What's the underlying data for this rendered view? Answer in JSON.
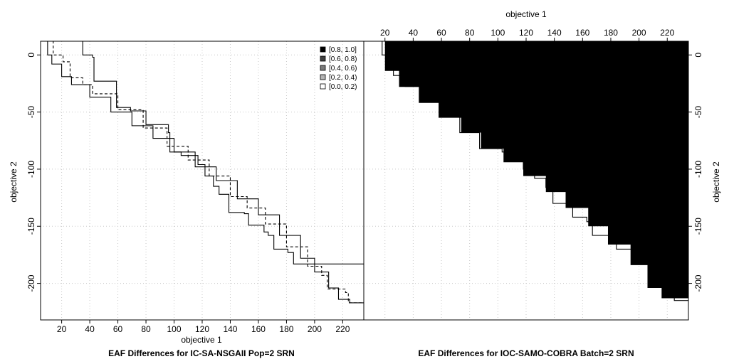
{
  "chart_data": {
    "type": "line",
    "xlabel": "objective 1",
    "ylabel": "objective 2",
    "xlim": [
      5,
      235
    ],
    "ylim": [
      -232,
      12
    ],
    "x_ticks": [
      20,
      40,
      60,
      80,
      100,
      120,
      140,
      160,
      180,
      200,
      220
    ],
    "y_ticks": [
      0,
      -50,
      -100,
      -150,
      -200
    ],
    "grid": true,
    "legend": {
      "placement": "top-right",
      "entries": [
        {
          "label": "[0.8, 1.0]",
          "color": "#000000"
        },
        {
          "label": "[0.6, 0.8)",
          "color": "#404040"
        },
        {
          "label": "[0.4, 0.6)",
          "color": "#7a7a7a"
        },
        {
          "label": "[0.2, 0.4)",
          "color": "#b4b4b4"
        },
        {
          "label": "[0.0, 0.2)",
          "color": "#ffffff"
        }
      ]
    },
    "panels": [
      {
        "title": "EAF Differences for IC-SA-NSGAII Pop=2 SRN",
        "lines": [
          {
            "style": "solid",
            "points": [
              [
                35,
                12
              ],
              [
                35,
                0
              ],
              [
                42,
                -2
              ],
              [
                43,
                -23
              ],
              [
                59,
                -23
              ],
              [
                59,
                -46
              ],
              [
                69,
                -49
              ],
              [
                80,
                -61
              ],
              [
                82,
                -61
              ],
              [
                96,
                -68
              ],
              [
                97,
                -85
              ],
              [
                105,
                -88
              ],
              [
                117,
                -96
              ],
              [
                122,
                -106
              ],
              [
                128,
                -115
              ],
              [
                132,
                -122
              ],
              [
                139,
                -138
              ],
              [
                150,
                -139
              ],
              [
                153,
                -149
              ],
              [
                164,
                -155
              ],
              [
                167,
                -158
              ],
              [
                171,
                -170
              ],
              [
                181,
                -173
              ],
              [
                185,
                -183
              ],
              [
                235,
                -183
              ]
            ]
          },
          {
            "style": "dashed",
            "points": [
              [
                10,
                12
              ],
              [
                14,
                0
              ],
              [
                21,
                -6
              ],
              [
                26,
                -20
              ],
              [
                35,
                -26
              ],
              [
                42,
                -34
              ],
              [
                60,
                -48
              ],
              [
                78,
                -64
              ],
              [
                95,
                -80
              ],
              [
                110,
                -92
              ],
              [
                125,
                -106
              ],
              [
                140,
                -124
              ],
              [
                152,
                -134
              ],
              [
                165,
                -148
              ],
              [
                180,
                -168
              ],
              [
                195,
                -185
              ],
              [
                205,
                -193
              ],
              [
                209,
                -205
              ],
              [
                222,
                -208
              ],
              [
                224,
                -217
              ],
              [
                235,
                -217
              ]
            ]
          },
          {
            "style": "solid",
            "points": [
              [
                10,
                12
              ],
              [
                10,
                0
              ],
              [
                13,
                -8
              ],
              [
                20,
                -19
              ],
              [
                27,
                -26
              ],
              [
                40,
                -37
              ],
              [
                55,
                -50
              ],
              [
                70,
                -62
              ],
              [
                85,
                -73
              ],
              [
                100,
                -85
              ],
              [
                115,
                -98
              ],
              [
                130,
                -110
              ],
              [
                145,
                -126
              ],
              [
                160,
                -140
              ],
              [
                175,
                -158
              ],
              [
                190,
                -178
              ],
              [
                200,
                -190
              ],
              [
                210,
                -204
              ],
              [
                217,
                -214
              ],
              [
                225,
                -217
              ],
              [
                235,
                -217
              ]
            ]
          }
        ]
      },
      {
        "title": "EAF Differences for IOC-SAMO-COBRA Batch=2 SRN",
        "lines": [
          {
            "style": "solid",
            "points": [
              [
                24,
                12
              ],
              [
                24,
                0
              ],
              [
                30,
                -8
              ],
              [
                31,
                -22
              ],
              [
                47,
                -22
              ],
              [
                47,
                -36
              ],
              [
                62,
                -38
              ],
              [
                62,
                -52
              ],
              [
                73,
                -55
              ],
              [
                73,
                -68
              ],
              [
                87,
                -71
              ],
              [
                87,
                -82
              ],
              [
                103,
                -85
              ],
              [
                110,
                -93
              ],
              [
                118,
                -100
              ],
              [
                126,
                -108
              ],
              [
                134,
                -116
              ],
              [
                139,
                -130
              ],
              [
                150,
                -132
              ],
              [
                153,
                -142
              ],
              [
                163,
                -146
              ],
              [
                167,
                -158
              ],
              [
                180,
                -160
              ],
              [
                184,
                -170
              ],
              [
                196,
                -174
              ],
              [
                203,
                -183
              ],
              [
                235,
                -183
              ]
            ]
          },
          {
            "style": "solid",
            "points": [
              [
                16,
                12
              ],
              [
                18,
                0
              ],
              [
                22,
                -8
              ],
              [
                26,
                -18
              ],
              [
                35,
                -26
              ],
              [
                50,
                -38
              ],
              [
                65,
                -50
              ],
              [
                80,
                -62
              ],
              [
                95,
                -75
              ],
              [
                110,
                -88
              ],
              [
                125,
                -100
              ],
              [
                140,
                -114
              ],
              [
                155,
                -128
              ],
              [
                170,
                -145
              ],
              [
                185,
                -163
              ],
              [
                200,
                -182
              ],
              [
                210,
                -200
              ],
              [
                218,
                -210
              ],
              [
                225,
                -215
              ],
              [
                235,
                -215
              ]
            ]
          }
        ],
        "eaf_bands": [
          {
            "level": "[0.2, 0.4)",
            "points": [
              [
                20,
                12
              ],
              [
                30,
                -4
              ],
              [
                42,
                -22
              ],
              [
                56,
                -33
              ],
              [
                70,
                -45
              ],
              [
                85,
                -58
              ],
              [
                100,
                -70
              ],
              [
                115,
                -82
              ],
              [
                130,
                -95
              ],
              [
                145,
                -108
              ],
              [
                160,
                -120
              ],
              [
                175,
                -135
              ],
              [
                190,
                -148
              ],
              [
                205,
                -165
              ],
              [
                220,
                -188
              ],
              [
                222,
                -210
              ],
              [
                235,
                -210
              ]
            ]
          },
          {
            "level": "[0.4, 0.6)",
            "points": [
              [
                19,
                12
              ],
              [
                25,
                -8
              ],
              [
                38,
                -26
              ],
              [
                52,
                -36
              ],
              [
                66,
                -48
              ],
              [
                82,
                -62
              ],
              [
                96,
                -74
              ],
              [
                112,
                -87
              ],
              [
                126,
                -98
              ],
              [
                142,
                -112
              ],
              [
                157,
                -125
              ],
              [
                172,
                -140
              ],
              [
                187,
                -155
              ],
              [
                202,
                -172
              ],
              [
                214,
                -195
              ],
              [
                220,
                -210
              ],
              [
                235,
                -212
              ]
            ]
          },
          {
            "level": "[0.6, 0.8)",
            "points": [
              [
                18,
                12
              ],
              [
                22,
                -12
              ],
              [
                34,
                -28
              ],
              [
                48,
                -40
              ],
              [
                62,
                -52
              ],
              [
                78,
                -65
              ],
              [
                92,
                -78
              ],
              [
                108,
                -90
              ],
              [
                122,
                -102
              ],
              [
                138,
                -116
              ],
              [
                152,
                -130
              ],
              [
                168,
                -146
              ],
              [
                182,
                -160
              ],
              [
                198,
                -178
              ],
              [
                210,
                -200
              ],
              [
                218,
                -212
              ],
              [
                235,
                -214
              ]
            ]
          },
          {
            "level": "[0.8, 1.0]",
            "points": [
              [
                17,
                12
              ],
              [
                20,
                -14
              ],
              [
                30,
                -28
              ],
              [
                44,
                -42
              ],
              [
                58,
                -55
              ],
              [
                74,
                -68
              ],
              [
                88,
                -82
              ],
              [
                104,
                -94
              ],
              [
                118,
                -106
              ],
              [
                134,
                -120
              ],
              [
                148,
                -134
              ],
              [
                164,
                -150
              ],
              [
                178,
                -166
              ],
              [
                194,
                -184
              ],
              [
                206,
                -204
              ],
              [
                216,
                -213
              ],
              [
                235,
                -215
              ]
            ]
          }
        ]
      }
    ]
  }
}
